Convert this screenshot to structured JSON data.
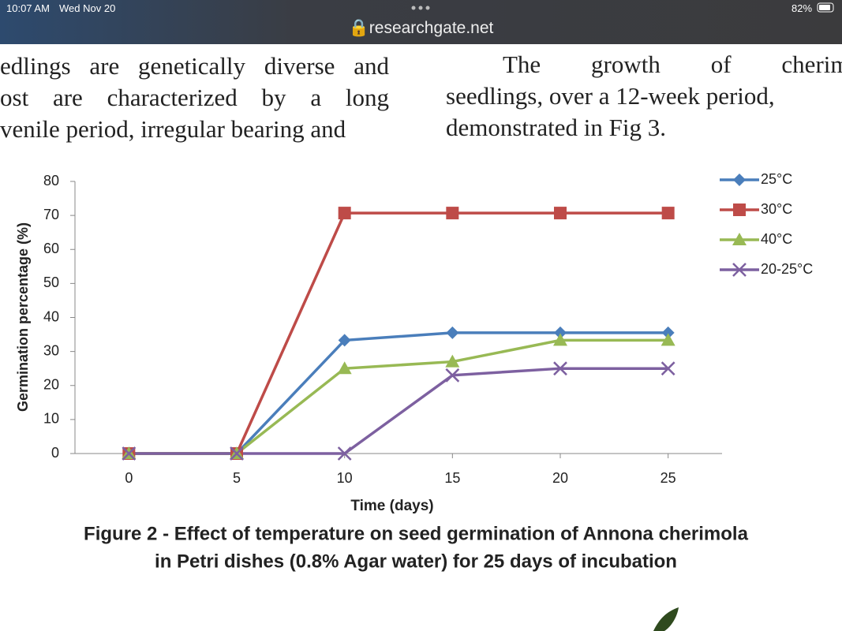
{
  "status": {
    "time": "10:07 AM",
    "date": "Wed Nov 20",
    "battery": "82%"
  },
  "url": "researchgate.net",
  "left_column": [
    "edlings are genetically diverse and",
    "ost are characterized by a long",
    "venile period, irregular bearing and"
  ],
  "right_column": [
    "The growth of cherimo",
    "seedlings, over a 12-week period,",
    "demonstrated in Fig 3."
  ],
  "chart_data": {
    "type": "line",
    "caption": [
      "Figure 2 - Effect of temperature on seed germination of Annona cherimola",
      "in Petri dishes (0.8% Agar water) for 25 days of incubation"
    ],
    "x_label": "Time (days)",
    "y_label": "Germination percentage (%)",
    "x": [
      0,
      5,
      10,
      15,
      20,
      25
    ],
    "xlim": [
      -2.5,
      27.5
    ],
    "xticks": [
      0,
      5,
      10,
      15,
      20,
      25
    ],
    "ylim": [
      0,
      80
    ],
    "yticks": [
      0,
      10,
      20,
      30,
      40,
      50,
      60,
      70,
      80
    ],
    "legend": "right-top",
    "series": [
      {
        "name": "25°C",
        "color": "#4a7ebb",
        "marker": "diamond",
        "values": [
          0,
          0,
          33.3,
          35.5,
          35.5,
          35.5
        ]
      },
      {
        "name": "30°C",
        "color": "#be4b48",
        "marker": "square",
        "values": [
          0,
          0,
          70.7,
          70.7,
          70.7,
          70.7
        ]
      },
      {
        "name": "40°C",
        "color": "#98b954",
        "marker": "triangle",
        "values": [
          0,
          0,
          25,
          27,
          33.3,
          33.3
        ]
      },
      {
        "name": "20-25°C",
        "color": "#7d60a0",
        "marker": "x",
        "values": [
          0,
          0,
          0,
          23,
          25,
          25
        ]
      }
    ]
  }
}
